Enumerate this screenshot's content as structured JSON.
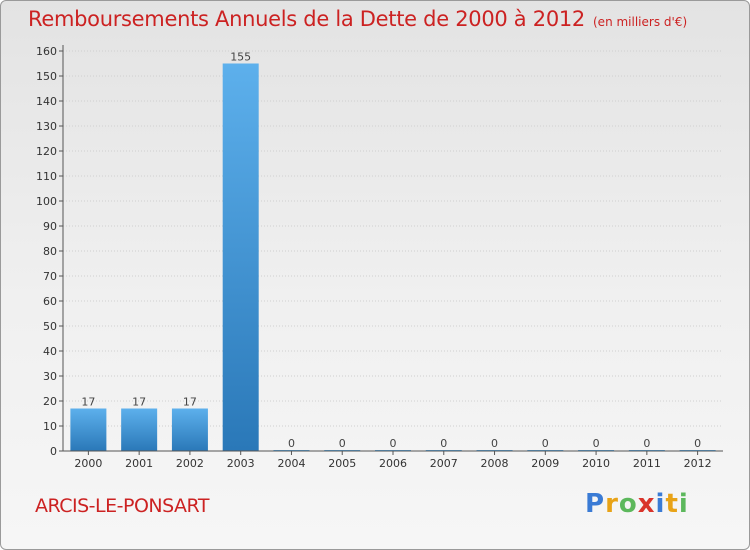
{
  "header": {
    "title": "Remboursements Annuels de la Dette de 2000 à 2012",
    "subtitle": "(en milliers d'€)"
  },
  "footer": {
    "commune": "ARCIS-LE-PONSART",
    "brand_letters": [
      "P",
      "r",
      "o",
      "x",
      "i",
      "t",
      "i"
    ],
    "brand_colors": [
      "#3a7bd5",
      "#e8a317",
      "#5cb85c",
      "#d9342b",
      "#3a7bd5",
      "#e8a317",
      "#5cb85c"
    ]
  },
  "colors": {
    "title": "#cc2222",
    "bar_top": "#5db0ec",
    "bar_bottom": "#2a78b8",
    "grid": "#cfcfcf",
    "axis": "#555555"
  },
  "chart_data": {
    "type": "bar",
    "title": "Remboursements Annuels de la Dette de 2000 à 2012",
    "subtitle": "(en milliers d'€)",
    "xlabel": "",
    "ylabel": "",
    "categories": [
      "2000",
      "2001",
      "2002",
      "2003",
      "2004",
      "2005",
      "2006",
      "2007",
      "2008",
      "2009",
      "2010",
      "2011",
      "2012"
    ],
    "values": [
      17,
      17,
      17,
      155,
      0,
      0,
      0,
      0,
      0,
      0,
      0,
      0,
      0
    ],
    "data_labels": [
      "17",
      "17",
      "17",
      "155",
      "0",
      "0",
      "0",
      "0",
      "0",
      "0",
      "0",
      "0",
      "0"
    ],
    "ylim": [
      0,
      160
    ],
    "yticks": [
      0,
      10,
      20,
      30,
      40,
      50,
      60,
      70,
      80,
      90,
      100,
      110,
      120,
      130,
      140,
      150,
      160
    ],
    "grid": true
  }
}
